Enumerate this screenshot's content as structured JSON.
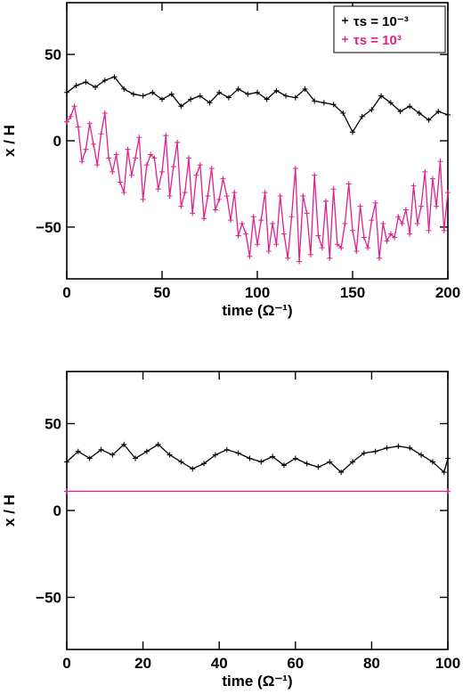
{
  "colors": {
    "black": "#000000",
    "magenta": "#e0218a"
  },
  "chart_data": [
    {
      "type": "line",
      "xlabel": "time (Ω⁻¹)",
      "ylabel": "x / H",
      "xlim": [
        0,
        200
      ],
      "ylim": [
        -80,
        80
      ],
      "xticks": [
        0,
        50,
        100,
        150,
        200
      ],
      "yticks": [
        -50,
        0,
        50
      ],
      "legend_placement": "top-right",
      "grid": false,
      "series": [
        {
          "name": "τs = 10⁻³",
          "color": "#000000",
          "x": [
            0,
            5,
            10,
            15,
            20,
            25,
            30,
            35,
            40,
            45,
            50,
            55,
            60,
            65,
            70,
            75,
            80,
            85,
            90,
            95,
            100,
            105,
            110,
            115,
            120,
            125,
            130,
            135,
            140,
            145,
            150,
            155,
            160,
            165,
            170,
            175,
            180,
            185,
            190,
            195,
            200
          ],
          "y": [
            28,
            32,
            34,
            31,
            35,
            37,
            30,
            27,
            26,
            28,
            24,
            27,
            20,
            24,
            26,
            22,
            28,
            25,
            30,
            27,
            28,
            24,
            29,
            26,
            25,
            30,
            23,
            22,
            21,
            16,
            5,
            14,
            18,
            26,
            22,
            17,
            20,
            16,
            12,
            17,
            15
          ]
        },
        {
          "name": "τs = 10³",
          "color": "#e0218a",
          "x": [
            0,
            2,
            4,
            6,
            8,
            10,
            12,
            14,
            16,
            18,
            20,
            22,
            24,
            26,
            28,
            30,
            32,
            34,
            36,
            38,
            40,
            42,
            44,
            46,
            48,
            50,
            52,
            54,
            56,
            58,
            60,
            62,
            64,
            66,
            68,
            70,
            72,
            74,
            76,
            78,
            80,
            82,
            84,
            86,
            88,
            90,
            92,
            94,
            96,
            98,
            100,
            102,
            104,
            106,
            108,
            110,
            112,
            114,
            116,
            118,
            120,
            122,
            124,
            126,
            128,
            130,
            132,
            134,
            136,
            138,
            140,
            142,
            144,
            146,
            148,
            150,
            152,
            154,
            156,
            158,
            160,
            162,
            164,
            166,
            168,
            170,
            172,
            174,
            176,
            178,
            180,
            182,
            184,
            186,
            188,
            190,
            192,
            194,
            196,
            198,
            200
          ],
          "y": [
            11,
            14,
            20,
            8,
            -12,
            -5,
            10,
            -2,
            -14,
            4,
            16,
            -10,
            -18,
            -8,
            -24,
            -30,
            -5,
            -20,
            -10,
            2,
            -34,
            -14,
            -8,
            -10,
            -28,
            -18,
            3,
            -32,
            -15,
            -1,
            -38,
            -30,
            -10,
            -42,
            -20,
            -14,
            -45,
            -32,
            -16,
            -40,
            -34,
            -22,
            -32,
            -46,
            -30,
            -55,
            -48,
            -54,
            -67,
            -44,
            -60,
            -46,
            -30,
            -64,
            -48,
            -60,
            -32,
            -54,
            -68,
            -44,
            -16,
            -70,
            -32,
            -42,
            -66,
            -20,
            -55,
            -62,
            -35,
            -68,
            -28,
            -60,
            -62,
            -48,
            -25,
            -52,
            -64,
            -38,
            -56,
            -62,
            -46,
            -36,
            -68,
            -48,
            -58,
            -54,
            -56,
            -44,
            -48,
            -40,
            -54,
            -26,
            -48,
            -38,
            -18,
            -52,
            -22,
            -38,
            -12,
            -52,
            -30
          ]
        }
      ]
    },
    {
      "type": "line",
      "xlabel": "time (Ω⁻¹)",
      "ylabel": "x / H",
      "xlim": [
        0,
        100
      ],
      "ylim": [
        -80,
        80
      ],
      "xticks": [
        0,
        20,
        40,
        60,
        80,
        100
      ],
      "yticks": [
        -50,
        0,
        50
      ],
      "grid": false,
      "series": [
        {
          "color": "#000000",
          "x": [
            0,
            3,
            6,
            9,
            12,
            15,
            18,
            21,
            24,
            27,
            30,
            33,
            36,
            39,
            42,
            45,
            48,
            51,
            54,
            57,
            60,
            63,
            66,
            69,
            72,
            75,
            78,
            81,
            84,
            87,
            90,
            93,
            96,
            99,
            100
          ],
          "y": [
            28,
            34,
            30,
            35,
            32,
            38,
            30,
            34,
            38,
            32,
            28,
            24,
            27,
            32,
            35,
            33,
            30,
            28,
            31,
            26,
            30,
            27,
            25,
            28,
            22,
            28,
            33,
            34,
            36,
            37,
            36,
            32,
            28,
            22,
            30
          ]
        },
        {
          "color": "#e0218a",
          "x": [
            0,
            100
          ],
          "y": [
            11,
            11
          ]
        }
      ]
    }
  ]
}
